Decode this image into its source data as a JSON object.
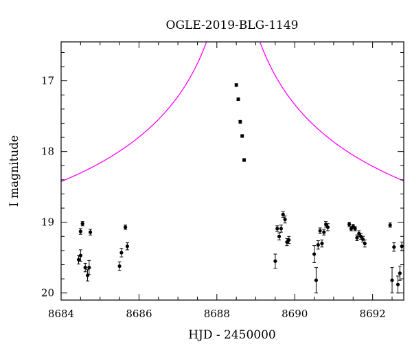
{
  "chart_data": {
    "type": "scatter",
    "title": "OGLE-2019-BLG-1149",
    "xlabel": "HJD - 2450000",
    "ylabel": "I magnitude",
    "xlim": [
      8684,
      8692.8
    ],
    "ylim": [
      20.1,
      16.45
    ],
    "y_inverted": true,
    "grid": false,
    "legend": "none",
    "x_ticks": [
      8684,
      8686,
      8688,
      8690,
      8692
    ],
    "x_tick_labels": [
      "8684",
      "8686",
      "8688",
      "8690",
      "8692"
    ],
    "y_ticks": [
      17,
      18,
      19,
      20
    ],
    "y_tick_labels": [
      "17",
      "18",
      "19",
      "20"
    ],
    "colors": {
      "model": "#ff00ff",
      "data": "#000000"
    },
    "model_curve": {
      "peak_t": 8688.42,
      "baseline_mag": 19.45,
      "peak_mag": 14.9,
      "tE": 9.5,
      "u0": 0.018
    },
    "series": [
      {
        "type": "scatter",
        "points": [
          [
            8684.5,
            19.13,
            0.04
          ],
          [
            8684.55,
            19.02,
            0.03
          ],
          [
            8684.75,
            19.14,
            0.04
          ],
          [
            8684.45,
            19.53,
            0.06
          ],
          [
            8684.5,
            19.47,
            0.08
          ],
          [
            8684.62,
            19.64,
            0.06
          ],
          [
            8684.68,
            19.75,
            0.08
          ],
          [
            8684.72,
            19.64,
            0.1
          ],
          [
            8685.5,
            19.62,
            0.06
          ],
          [
            8685.55,
            19.43,
            0.06
          ],
          [
            8685.65,
            19.07,
            0.03
          ],
          [
            8685.7,
            19.34,
            0.05
          ],
          [
            8688.5,
            17.06,
            0.02
          ],
          [
            8688.55,
            17.26,
            0.02
          ],
          [
            8688.6,
            17.58,
            0.02
          ],
          [
            8688.65,
            17.78,
            0.02
          ],
          [
            8688.7,
            18.12,
            0.02
          ],
          [
            8689.5,
            19.55,
            0.1
          ],
          [
            8689.55,
            19.09,
            0.04
          ],
          [
            8689.6,
            19.2,
            0.05
          ],
          [
            8689.65,
            19.09,
            0.05
          ],
          [
            8689.7,
            18.89,
            0.04
          ],
          [
            8689.75,
            18.96,
            0.05
          ],
          [
            8689.8,
            19.28,
            0.05
          ],
          [
            8689.85,
            19.25,
            0.05
          ],
          [
            8690.5,
            19.45,
            0.12
          ],
          [
            8690.55,
            19.82,
            0.18
          ],
          [
            8690.6,
            19.32,
            0.06
          ],
          [
            8690.65,
            19.12,
            0.04
          ],
          [
            8690.7,
            19.3,
            0.05
          ],
          [
            8690.75,
            19.14,
            0.04
          ],
          [
            8690.8,
            19.03,
            0.04
          ],
          [
            8690.85,
            19.07,
            0.05
          ],
          [
            8691.4,
            19.03,
            0.03
          ],
          [
            8691.45,
            19.09,
            0.03
          ],
          [
            8691.5,
            19.06,
            0.03
          ],
          [
            8691.55,
            19.09,
            0.03
          ],
          [
            8691.6,
            19.22,
            0.04
          ],
          [
            8691.65,
            19.16,
            0.04
          ],
          [
            8691.7,
            19.2,
            0.04
          ],
          [
            8691.75,
            19.24,
            0.04
          ],
          [
            8691.8,
            19.3,
            0.05
          ],
          [
            8692.45,
            19.04,
            0.03
          ],
          [
            8692.5,
            19.82,
            0.18
          ],
          [
            8692.55,
            19.35,
            0.06
          ],
          [
            8692.65,
            19.88,
            0.12
          ],
          [
            8692.7,
            19.72,
            0.1
          ],
          [
            8692.75,
            19.34,
            0.06
          ]
        ]
      }
    ]
  }
}
